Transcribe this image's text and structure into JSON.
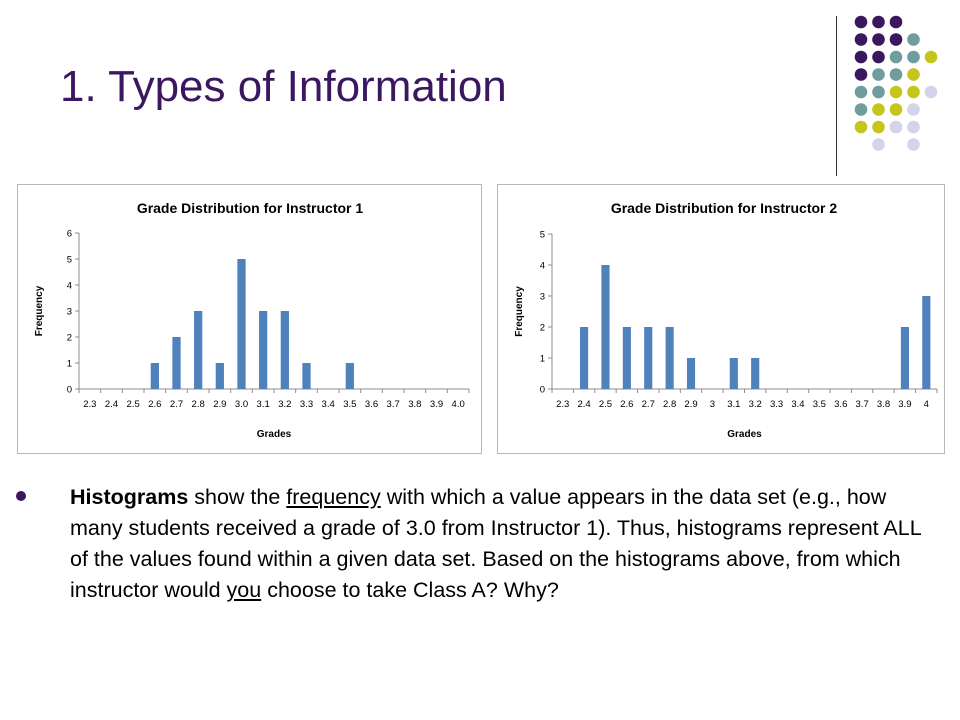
{
  "slide": {
    "title": "1. Types of Information"
  },
  "decoration": {
    "dot_colors": {
      "purple": "#3b1760",
      "teal": "#6f9c9c",
      "yellow": "#c6c51c",
      "lavender": "#d4d3ea"
    },
    "dot_rows": [
      [
        "purple",
        "purple",
        "purple",
        ""
      ],
      [
        "purple",
        "purple",
        "purple",
        "teal"
      ],
      [
        "purple",
        "purple",
        "teal",
        "teal",
        "yellow"
      ],
      [
        "purple",
        "teal",
        "teal",
        "yellow"
      ],
      [
        "teal",
        "teal",
        "yellow",
        "yellow",
        "lavender"
      ],
      [
        "teal",
        "yellow",
        "yellow",
        "lavender"
      ],
      [
        "yellow",
        "yellow",
        "lavender",
        "lavender"
      ],
      [
        "",
        "lavender",
        "",
        "lavender"
      ]
    ]
  },
  "chart_data": [
    {
      "type": "bar",
      "title": "Grade Distribution for Instructor 1",
      "xlabel": "Grades",
      "ylabel": "Frequency",
      "categories": [
        "2.3",
        "2.4",
        "2.5",
        "2.6",
        "2.7",
        "2.8",
        "2.9",
        "3.0",
        "3.1",
        "3.2",
        "3.3",
        "3.4",
        "3.5",
        "3.6",
        "3.7",
        "3.8",
        "3.9",
        "4.0"
      ],
      "values": [
        0,
        0,
        0,
        1,
        2,
        3,
        1,
        5,
        3,
        3,
        1,
        0,
        1,
        0,
        0,
        0,
        0,
        0
      ],
      "ylim": [
        0,
        6
      ],
      "yticks": [
        "0",
        "1",
        "2",
        "3",
        "4",
        "5",
        "6"
      ],
      "bar_color": "#4f81bd",
      "grid": false
    },
    {
      "type": "bar",
      "title": "Grade Distribution for Instructor 2",
      "xlabel": "Grades",
      "ylabel": "Frequency",
      "categories": [
        "2.3",
        "2.4",
        "2.5",
        "2.6",
        "2.7",
        "2.8",
        "2.9",
        "3",
        "3.1",
        "3.2",
        "3.3",
        "3.4",
        "3.5",
        "3.6",
        "3.7",
        "3.8",
        "3.9",
        "4"
      ],
      "values": [
        0,
        2,
        4,
        2,
        2,
        2,
        1,
        0,
        1,
        1,
        0,
        0,
        0,
        0,
        0,
        0,
        2,
        3
      ],
      "ylim": [
        0,
        5
      ],
      "yticks": [
        "0",
        "1",
        "2",
        "3",
        "4",
        "5"
      ],
      "bar_color": "#4f81bd",
      "grid": false
    }
  ],
  "bullet": {
    "bold_lead": "Histograms",
    "part1": " show the ",
    "underline1": "frequency",
    "part2": " with which a value appears in the data set (e.g., how many students received a grade of 3.0 from Instructor 1). Thus, histograms represent ALL of the values found within a given data set.  Based on the histograms above, from which instructor would ",
    "underline2": "you",
    "part3": " choose to take Class A?  Why?"
  }
}
